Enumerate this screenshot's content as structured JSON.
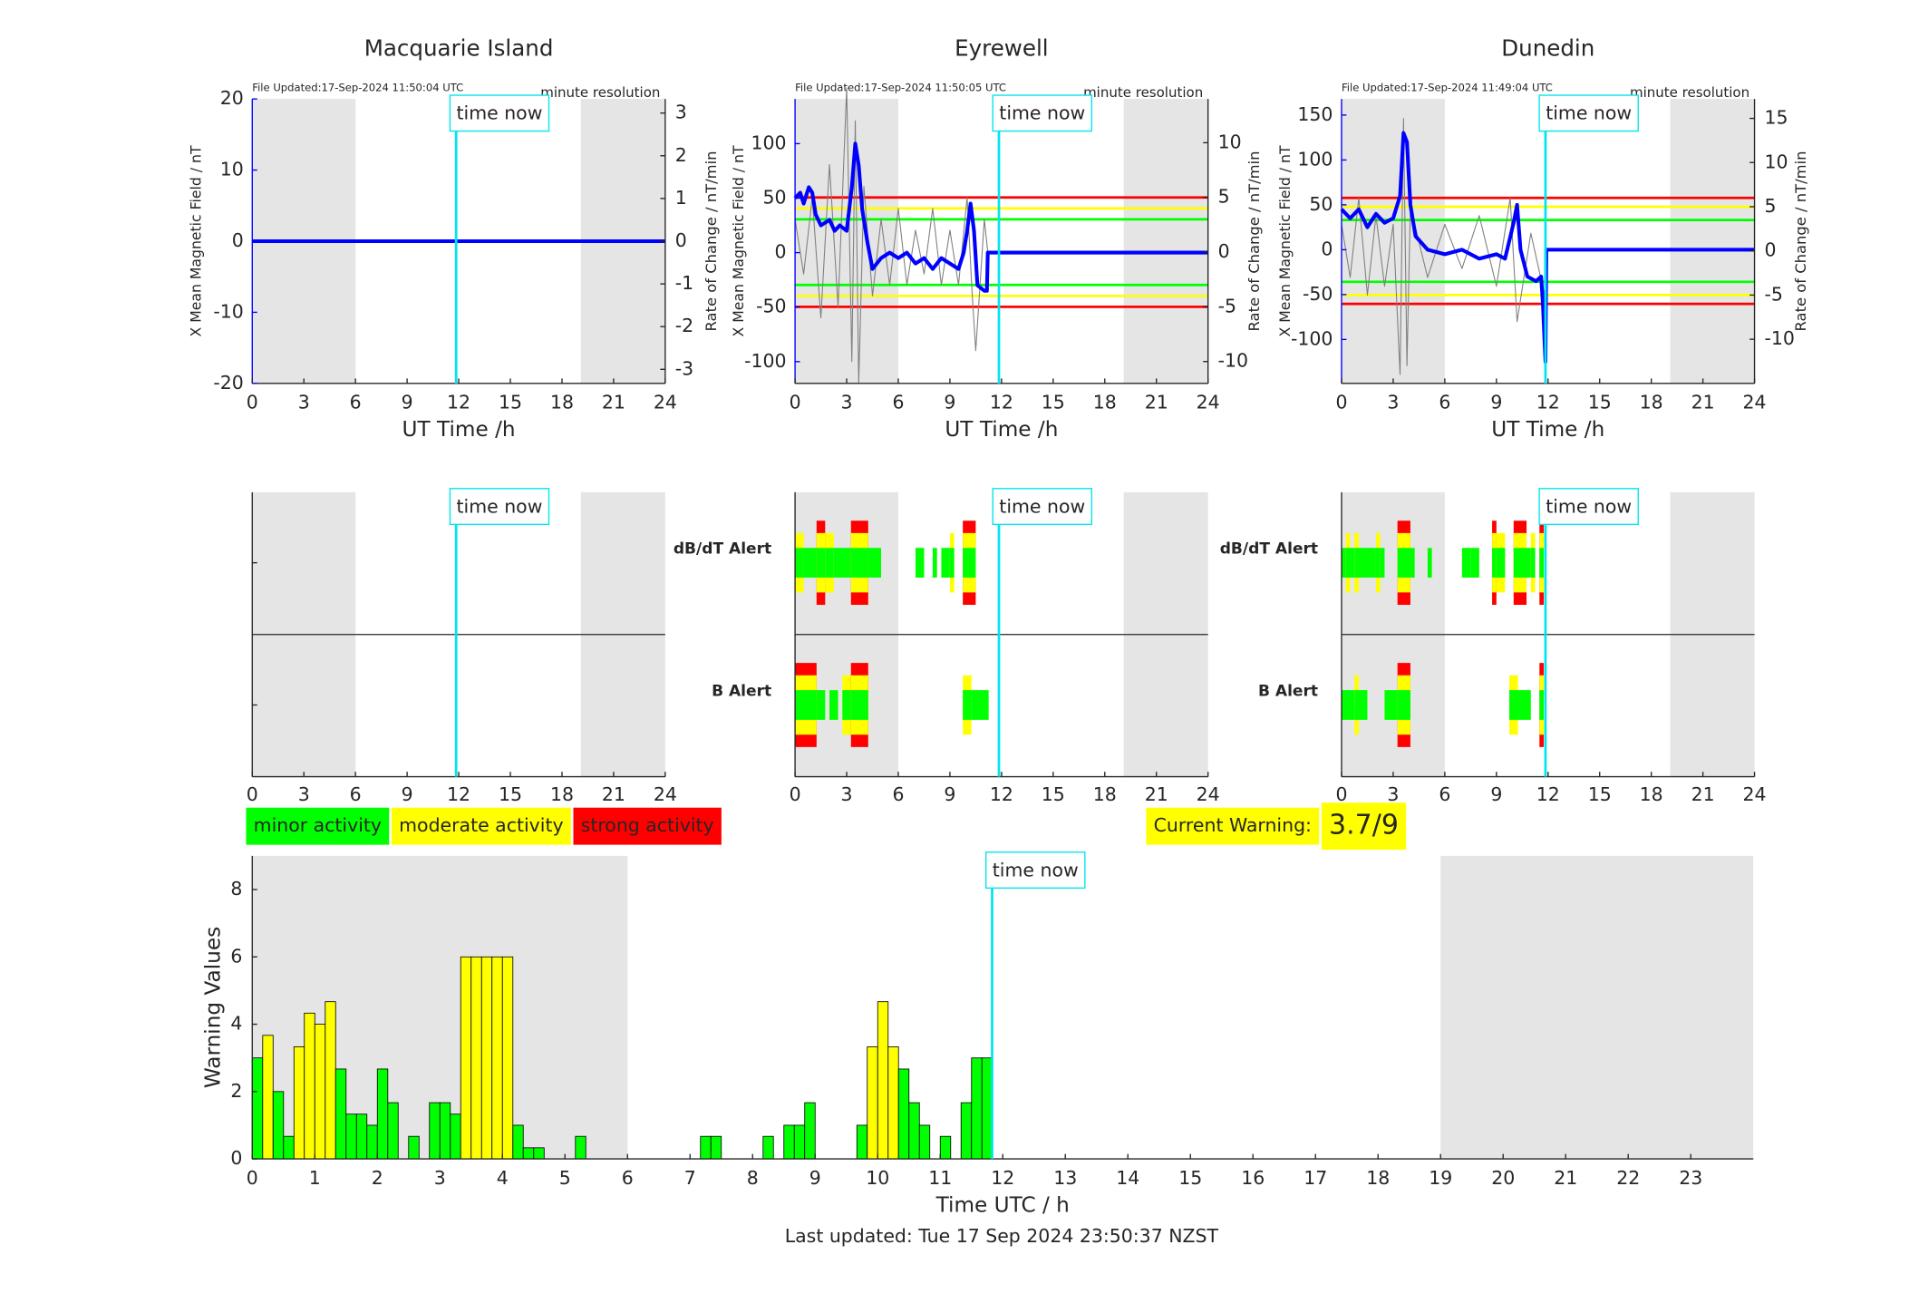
{
  "chart_data": [
    {
      "type": "line",
      "title": "Macquarie Island",
      "file_updated": "File Updated:17-Sep-2024 11:50:04 UTC",
      "resolution": "minute resolution",
      "ylabel": "X Mean Magnetic Field / nT",
      "y2label": "Rate of Change / nT/min",
      "xlabel": "UT Time /h",
      "xlim": [
        0,
        24
      ],
      "xticks": [
        0,
        3,
        6,
        9,
        12,
        15,
        18,
        21,
        24
      ],
      "ylim": [
        -20,
        20
      ],
      "yticks": [
        -20,
        -10,
        0,
        10,
        20
      ],
      "y2lim": [
        -3.33,
        3.33
      ],
      "y2ticks": [
        -3,
        -2,
        -1,
        0,
        1,
        2,
        3
      ],
      "night": [
        [
          0,
          6
        ],
        [
          19.1,
          24
        ]
      ],
      "time_now": 11.85,
      "time_now_label": "time now",
      "thresholds": [],
      "series": [
        {
          "color": "#808080",
          "axis": "y2",
          "x": [
            0,
            24
          ],
          "values": [
            0,
            0
          ]
        },
        {
          "color": "#0000ff",
          "x": [
            0,
            24
          ],
          "values": [
            0,
            0
          ]
        }
      ]
    },
    {
      "type": "line",
      "title": "Eyrewell",
      "file_updated": "File Updated:17-Sep-2024 11:50:05 UTC",
      "resolution": "minute resolution",
      "ylabel": "X Mean Magnetic Field / nT",
      "y2label": "Rate of Change / nT/min",
      "xlabel": "UT Time /h",
      "xlim": [
        0,
        24
      ],
      "xticks": [
        0,
        3,
        6,
        9,
        12,
        15,
        18,
        21,
        24
      ],
      "ylim": [
        -120,
        141
      ],
      "yticks": [
        -100,
        -50,
        0,
        50,
        100
      ],
      "y2lim": [
        -12,
        14
      ],
      "y2ticks": [
        -10,
        -5,
        0,
        5,
        10
      ],
      "night": [
        [
          0,
          6
        ],
        [
          19.1,
          24
        ]
      ],
      "time_now": 11.85,
      "time_now_label": "time now",
      "thresholds": [
        {
          "color": "#ff0000",
          "values": [
            5,
            -5
          ]
        },
        {
          "color": "#ffff00",
          "values": [
            4,
            -4
          ]
        },
        {
          "color": "#00ff00",
          "values": [
            3,
            -3
          ]
        }
      ],
      "series": [
        {
          "color": "#808080",
          "axis": "y2",
          "x": [
            0,
            0.5,
            1,
            1.5,
            2,
            2.5,
            3,
            3.3,
            3.5,
            3.7,
            4,
            4.5,
            5,
            5.5,
            6,
            6.5,
            7,
            7.5,
            8,
            8.5,
            9,
            9.5,
            10,
            10.3,
            10.5,
            11,
            11.2,
            24
          ],
          "values": [
            3,
            -2,
            5,
            -6,
            8,
            -5,
            15,
            -10,
            12,
            -12,
            6,
            -4,
            3,
            -3,
            4,
            -3,
            2,
            -2,
            4,
            -3,
            2,
            -3,
            5,
            -4,
            -9,
            3,
            0,
            0
          ]
        },
        {
          "color": "#0000ff",
          "x": [
            0,
            0.3,
            0.5,
            0.8,
            1,
            1.2,
            1.5,
            2,
            2.3,
            2.6,
            3,
            3.3,
            3.5,
            3.7,
            3.9,
            4.2,
            4.5,
            5,
            5.5,
            6,
            6.5,
            7,
            7.5,
            8,
            8.5,
            9,
            9.5,
            9.8,
            10,
            10.2,
            10.4,
            10.6,
            11,
            11.15,
            11.2,
            24
          ],
          "values": [
            50,
            55,
            45,
            60,
            55,
            35,
            25,
            30,
            20,
            25,
            20,
            60,
            100,
            80,
            40,
            10,
            -15,
            -5,
            0,
            -5,
            0,
            -10,
            -5,
            -15,
            -5,
            -10,
            -15,
            0,
            20,
            45,
            20,
            -30,
            -35,
            -35,
            0,
            0
          ]
        }
      ]
    },
    {
      "type": "line",
      "title": "Dunedin",
      "file_updated": "File Updated:17-Sep-2024 11:49:04 UTC",
      "resolution": "minute resolution",
      "ylabel": "X Mean Magnetic Field / nT",
      "y2label": "Rate of Change / nT/min",
      "xlabel": "UT Time /h",
      "xlim": [
        0,
        24
      ],
      "xticks": [
        0,
        3,
        6,
        9,
        12,
        15,
        18,
        21,
        24
      ],
      "ylim": [
        -149,
        168
      ],
      "yticks": [
        -100,
        -50,
        0,
        50,
        100,
        150
      ],
      "y2lim": [
        -15,
        17.2
      ],
      "y2ticks": [
        -10,
        -5,
        0,
        5,
        10,
        15
      ],
      "night": [
        [
          0,
          6
        ],
        [
          19.1,
          24
        ]
      ],
      "time_now": 11.85,
      "time_now_label": "time now",
      "thresholds": [
        {
          "color": "#ff0000",
          "values": [
            6,
            -6
          ]
        },
        {
          "color": "#ffff00",
          "values": [
            5,
            -5
          ]
        },
        {
          "color": "#00ff00",
          "values": [
            3.5,
            -3.5
          ]
        }
      ],
      "series": [
        {
          "color": "#808080",
          "axis": "y2",
          "x": [
            0,
            0.5,
            1,
            1.5,
            2,
            2.5,
            3,
            3.4,
            3.6,
            3.8,
            4,
            5,
            6,
            7,
            8,
            9,
            9.8,
            10.2,
            11,
            11.8,
            11.9,
            24
          ],
          "values": [
            3,
            -3,
            6,
            -5,
            4,
            -4,
            3,
            -14,
            15,
            -13,
            5,
            -3,
            3,
            -2,
            4,
            -4,
            6,
            -8,
            2,
            -5,
            0,
            0
          ]
        },
        {
          "color": "#0000ff",
          "x": [
            0,
            0.5,
            1,
            1.5,
            2,
            2.5,
            3,
            3.4,
            3.6,
            3.8,
            4,
            4.3,
            5,
            6,
            7,
            8,
            9,
            9.5,
            10,
            10.2,
            10.4,
            10.8,
            11.3,
            11.6,
            11.7,
            11.85,
            11.9,
            24
          ],
          "values": [
            45,
            35,
            45,
            25,
            40,
            30,
            35,
            60,
            130,
            120,
            50,
            15,
            0,
            -5,
            0,
            -10,
            -5,
            -10,
            30,
            50,
            0,
            -30,
            -35,
            -30,
            -60,
            -125,
            0,
            0
          ]
        }
      ]
    },
    {
      "type": "alert",
      "xlim": [
        0,
        24
      ],
      "xticks": [
        0,
        3,
        6,
        9,
        12,
        15,
        18,
        21,
        24
      ],
      "night": [
        [
          0,
          6
        ],
        [
          19.1,
          24
        ]
      ],
      "time_now": 11.85,
      "time_now_label": "time now",
      "rows": [
        {
          "x": [],
          "x_end": [],
          "values": []
        },
        {
          "x": [],
          "x_end": [],
          "values": []
        }
      ]
    },
    {
      "type": "alert",
      "xlim": [
        0,
        24
      ],
      "xticks": [
        0,
        3,
        6,
        9,
        12,
        15,
        18,
        21,
        24
      ],
      "night": [
        [
          0,
          6
        ],
        [
          19.1,
          24
        ]
      ],
      "time_now": 11.85,
      "time_now_label": "time now",
      "rows": [
        {
          "name": "dB/dT Alert",
          "color": "#000000",
          "x": [
            0,
            0.5,
            1.25,
            1.75,
            2.25,
            3.25,
            4.25,
            7,
            8,
            8.5,
            9,
            9.75
          ],
          "x_end": [
            0.5,
            1.25,
            1.75,
            2.25,
            3.25,
            4.25,
            5,
            7.5,
            8.25,
            9,
            9.25,
            10.5
          ],
          "values": [
            2,
            1,
            3,
            2,
            1,
            3,
            1,
            1,
            1,
            1,
            2,
            3
          ]
        },
        {
          "name": "B Alert",
          "color": "#0000ff",
          "x": [
            0,
            1.25,
            2,
            2.75,
            3.25,
            9.75,
            10.25
          ],
          "x_end": [
            1.25,
            1.75,
            2.5,
            3.25,
            4.25,
            10.25,
            11.25
          ],
          "values": [
            3,
            1,
            1,
            2,
            3,
            2,
            1
          ]
        }
      ]
    },
    {
      "type": "alert",
      "xlim": [
        0,
        24
      ],
      "xticks": [
        0,
        3,
        6,
        9,
        12,
        15,
        18,
        21,
        24
      ],
      "night": [
        [
          0,
          6
        ],
        [
          19.1,
          24
        ]
      ],
      "time_now": 11.85,
      "time_now_label": "time now",
      "rows": [
        {
          "name": "dB/dT Alert",
          "color": "#000000",
          "x": [
            0,
            0.25,
            0.5,
            0.75,
            1,
            2,
            2.25,
            3.25,
            4,
            5,
            7,
            7.5,
            8.75,
            9,
            10,
            10.75,
            11,
            11.5
          ],
          "x_end": [
            0.25,
            0.5,
            0.75,
            1,
            2,
            2.25,
            2.5,
            4,
            4.25,
            5.25,
            7.5,
            8,
            9,
            9.5,
            10.75,
            11,
            11.25,
            11.75
          ],
          "values": [
            1,
            2,
            1,
            2,
            1,
            2,
            1,
            3,
            1,
            1,
            1,
            1,
            3,
            2,
            3,
            1,
            2,
            3
          ]
        },
        {
          "name": "B Alert",
          "color": "#0000ff",
          "x": [
            0,
            0.75,
            1,
            2.5,
            3.25,
            9.75,
            10.25,
            11.5
          ],
          "x_end": [
            0.75,
            1,
            1.5,
            3.25,
            4,
            10.25,
            11,
            11.75
          ],
          "values": [
            1,
            2,
            1,
            1,
            3,
            2,
            1,
            3
          ]
        }
      ]
    },
    {
      "type": "histogram",
      "ylabel": "Warning Values",
      "xlabel": "Time UTC / h",
      "footer": "Last updated: Tue 17 Sep 2024 23:50:37 NZST",
      "current_warning_label": "Current Warning:",
      "current_warning": "3.7/9",
      "legend": [
        {
          "name": "minor activity",
          "color": "#00ff00"
        },
        {
          "name": "moderate activity",
          "color": "#ffff00"
        },
        {
          "name": "strong activity",
          "color": "#ff0000"
        }
      ],
      "xlim": [
        0,
        24
      ],
      "xticks": [
        0,
        1,
        2,
        3,
        4,
        5,
        6,
        7,
        8,
        9,
        10,
        11,
        12,
        13,
        14,
        15,
        16,
        17,
        18,
        19,
        20,
        21,
        22,
        23
      ],
      "ylim": [
        0,
        9
      ],
      "yticks": [
        0,
        2,
        4,
        6,
        8
      ],
      "night": [
        [
          0,
          6
        ],
        [
          19,
          24
        ]
      ],
      "time_now": 11.83,
      "time_now_label": "time now",
      "bins": [
        0,
        0.167,
        0.333,
        0.5,
        0.667,
        0.833,
        1,
        1.167,
        1.333,
        1.5,
        1.667,
        1.833,
        2,
        2.167,
        2.333,
        2.5,
        2.667,
        2.833,
        3,
        3.167,
        3.333,
        3.5,
        3.667,
        3.833,
        4,
        4.167,
        4.333,
        4.5,
        4.667,
        4.833,
        5,
        5.167,
        5.333,
        5.5,
        5.667,
        5.833,
        6,
        6.167,
        6.333,
        6.5,
        6.667,
        6.833,
        7,
        7.167,
        7.333,
        7.5,
        7.667,
        7.833,
        8,
        8.167,
        8.333,
        8.5,
        8.667,
        8.833,
        9,
        9.167,
        9.333,
        9.5,
        9.667,
        9.833,
        10,
        10.167,
        10.333,
        10.5,
        10.667,
        10.833,
        11,
        11.167,
        11.333,
        11.5,
        11.667,
        11.833
      ],
      "values": [
        3,
        3.67,
        2,
        0.67,
        3.33,
        4.33,
        4,
        4.67,
        2.67,
        1.33,
        1.33,
        1,
        2.67,
        1.67,
        0,
        0.67,
        0,
        1.67,
        1.67,
        1.33,
        6,
        6,
        6,
        6,
        6,
        1,
        0.33,
        0.33,
        0,
        0,
        0,
        0.67,
        0,
        0,
        0,
        0,
        0,
        0,
        0,
        0,
        0,
        0,
        0,
        0.67,
        0.67,
        0,
        0,
        0,
        0,
        0.67,
        0,
        1,
        1,
        1.67,
        0,
        0,
        0,
        0,
        1,
        3.33,
        4.67,
        3.33,
        2.67,
        1.67,
        1,
        0,
        0.67,
        0,
        1.67,
        3,
        3
      ],
      "levels": [
        1,
        2,
        1,
        1,
        2,
        2,
        2,
        2,
        1,
        1,
        1,
        1,
        1,
        1,
        1,
        1,
        1,
        1,
        1,
        1,
        2,
        2,
        2,
        2,
        2,
        1,
        1,
        1,
        1,
        1,
        1,
        1,
        1,
        1,
        1,
        1,
        1,
        1,
        1,
        1,
        1,
        1,
        1,
        1,
        1,
        1,
        1,
        1,
        1,
        1,
        1,
        1,
        1,
        1,
        1,
        1,
        1,
        1,
        1,
        2,
        2,
        2,
        1,
        1,
        1,
        1,
        1,
        1,
        1,
        1,
        1
      ]
    }
  ]
}
